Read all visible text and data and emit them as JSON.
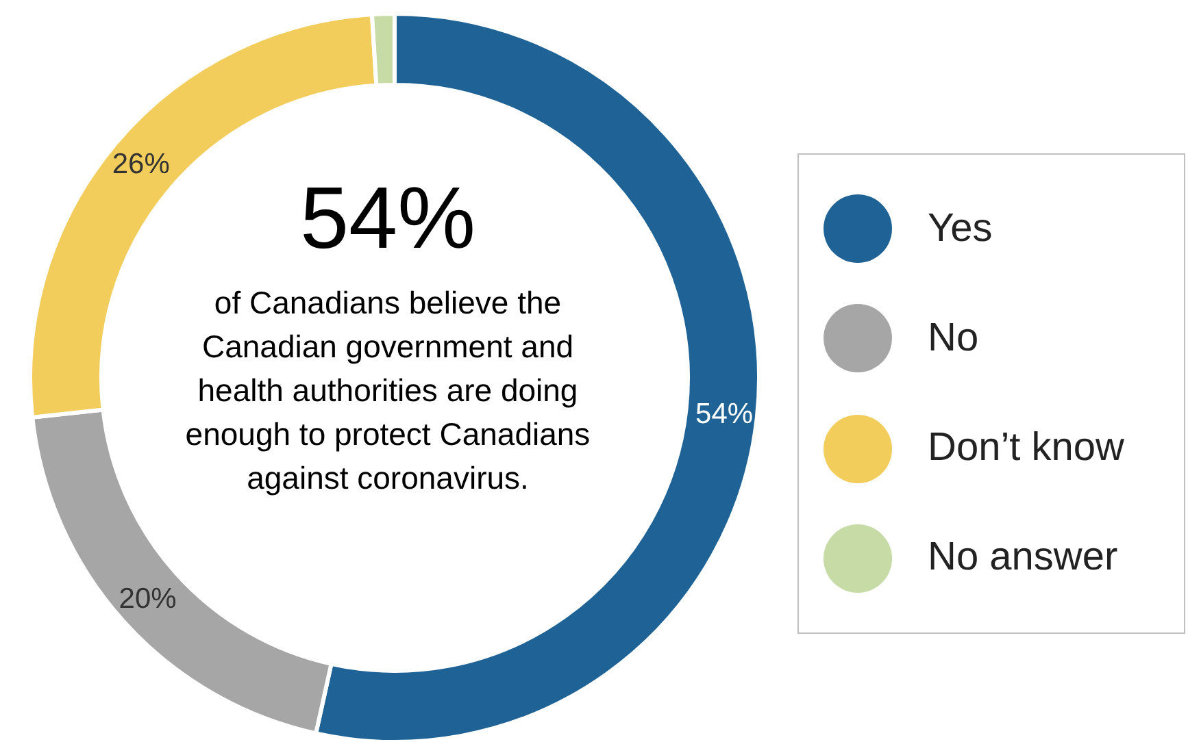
{
  "chart_data": {
    "type": "donut",
    "categories": [
      "Yes",
      "No",
      "Don’t know",
      "No answer"
    ],
    "values": [
      54,
      20,
      26,
      1
    ],
    "colors": [
      "#1f6396",
      "#a6a6a6",
      "#f2cd5c",
      "#c6dba5"
    ],
    "value_labels": [
      "54%",
      "20%",
      "26%",
      null
    ],
    "legend": "right",
    "annotations": [
      "54%",
      "of Canadians believe the Canadian government and health authorities are doing enough to protect Canadians against coronavirus."
    ]
  }
}
